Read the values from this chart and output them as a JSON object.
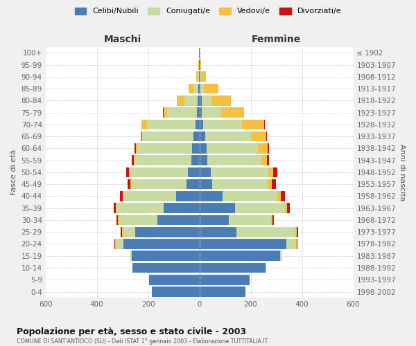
{
  "age_groups": [
    "0-4",
    "5-9",
    "10-14",
    "15-19",
    "20-24",
    "25-29",
    "30-34",
    "35-39",
    "40-44",
    "45-49",
    "50-54",
    "55-59",
    "60-64",
    "65-69",
    "70-74",
    "75-79",
    "80-84",
    "85-89",
    "90-94",
    "95-99",
    "100+"
  ],
  "birth_years": [
    "1998-2002",
    "1993-1997",
    "1988-1992",
    "1983-1987",
    "1978-1982",
    "1973-1977",
    "1968-1972",
    "1963-1967",
    "1958-1962",
    "1953-1957",
    "1948-1952",
    "1943-1947",
    "1938-1942",
    "1933-1937",
    "1928-1932",
    "1923-1927",
    "1918-1922",
    "1913-1917",
    "1908-1912",
    "1903-1907",
    "≤ 1902"
  ],
  "maschi_celibi": [
    185,
    195,
    260,
    265,
    295,
    250,
    165,
    140,
    90,
    50,
    45,
    32,
    28,
    22,
    15,
    10,
    8,
    4,
    2,
    1,
    1
  ],
  "maschi_coniugati": [
    0,
    0,
    2,
    5,
    32,
    45,
    148,
    182,
    205,
    215,
    225,
    220,
    215,
    200,
    190,
    115,
    50,
    18,
    5,
    1,
    0
  ],
  "maschi_vedovi": [
    0,
    0,
    0,
    0,
    2,
    8,
    5,
    5,
    5,
    5,
    5,
    5,
    5,
    5,
    20,
    15,
    30,
    20,
    5,
    2,
    0
  ],
  "maschi_divorziati": [
    0,
    0,
    0,
    0,
    2,
    3,
    5,
    8,
    10,
    10,
    10,
    7,
    5,
    2,
    2,
    2,
    0,
    0,
    0,
    0,
    0
  ],
  "femmine_nubili": [
    180,
    195,
    258,
    315,
    340,
    145,
    115,
    140,
    90,
    50,
    45,
    32,
    28,
    22,
    15,
    10,
    8,
    4,
    2,
    1,
    1
  ],
  "femmine_coniugate": [
    0,
    0,
    2,
    8,
    38,
    230,
    165,
    195,
    215,
    215,
    225,
    210,
    200,
    180,
    150,
    75,
    38,
    12,
    5,
    1,
    0
  ],
  "femmine_vedove": [
    0,
    0,
    0,
    0,
    2,
    5,
    5,
    8,
    13,
    18,
    18,
    22,
    38,
    58,
    88,
    88,
    78,
    58,
    18,
    4,
    0
  ],
  "femmine_divorziate": [
    0,
    0,
    0,
    0,
    2,
    5,
    5,
    10,
    15,
    15,
    15,
    7,
    5,
    3,
    2,
    2,
    0,
    0,
    0,
    0,
    0
  ],
  "colors": {
    "celibi_nubili": "#4a7db5",
    "coniugati": "#c8dba0",
    "vedovi": "#f5c040",
    "divorziati": "#cc1111"
  },
  "xlim": 600,
  "title": "Popolazione per età, sesso e stato civile - 2003",
  "subtitle": "COMUNE DI SANT'ANTIOCO (SU) - Dati ISTAT 1° gennaio 2003 - Elaborazione TUTTITALIA.IT",
  "xlabel_left": "Maschi",
  "xlabel_right": "Femmine",
  "ylabel_left": "Fasce di età",
  "ylabel_right": "Anni di nascita",
  "legend_labels": [
    "Celibi/Nubili",
    "Coniugati/e",
    "Vedovi/e",
    "Divorziati/e"
  ],
  "bg_color": "#f0f0f0",
  "plot_bg": "#ffffff"
}
